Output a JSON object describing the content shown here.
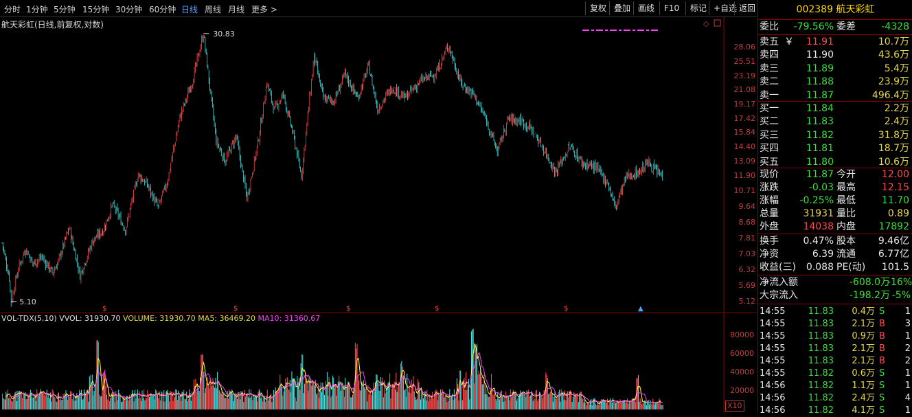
{
  "toolbar": {
    "tabs": [
      "分时",
      "1分钟",
      "5分钟",
      "15分钟",
      "30分钟",
      "60分钟",
      "日线",
      "周线",
      "月线",
      "更多 >"
    ],
    "active_tab": "日线",
    "buttons": [
      "复权",
      "叠加",
      "画线",
      "F10",
      "标记",
      "+自选",
      "返回"
    ]
  },
  "chart": {
    "title": "航天彩虹(日线,前复权,对数)",
    "high_marker": "30.83",
    "low_marker": "5.10",
    "price_axis": [
      "28.06",
      "25.51",
      "23.19",
      "21.08",
      "19.17",
      "17.42",
      "15.84",
      "14.40",
      "13.09",
      "11.90",
      "10.71",
      "9.64",
      "8.68",
      "7.81",
      "7.03",
      "6.32",
      "5.69",
      "5.12"
    ],
    "vol_header": {
      "name": "VOL-TDX(5,10)",
      "vvol": "VVOL: 31930.70",
      "volume": "VOLUME: 31930.70",
      "ma5": "MA5: 36469.20",
      "ma10": "MA10: 31360.67"
    },
    "vol_axis": [
      "80000",
      "60000",
      "40000",
      "20000"
    ],
    "vol_unit": "X10",
    "colors": {
      "up": "#ff4a4a",
      "down": "#40e0e0",
      "ma5": "#ffff40",
      "ma10": "#ff40ff",
      "axis": "#c04040"
    }
  },
  "quote": {
    "code": "002389",
    "name": "航天彩虹",
    "weibi_label": "委比",
    "weibi": "-79.56%",
    "weicha_label": "委差",
    "weicha": "-4328",
    "asks": [
      {
        "label": "卖五",
        "mark": "￥",
        "price": "11.91",
        "vol": "10.7万",
        "pc": "c-red"
      },
      {
        "label": "卖四",
        "mark": "",
        "price": "11.90",
        "vol": "43.6万",
        "pc": "c-white"
      },
      {
        "label": "卖三",
        "mark": "",
        "price": "11.89",
        "vol": "5.4万",
        "pc": "c-green"
      },
      {
        "label": "卖二",
        "mark": "",
        "price": "11.88",
        "vol": "23.9万",
        "pc": "c-green"
      },
      {
        "label": "卖一",
        "mark": "",
        "price": "11.87",
        "vol": "496.4万",
        "pc": "c-green"
      }
    ],
    "bids": [
      {
        "label": "买一",
        "price": "11.84",
        "vol": "2.2万"
      },
      {
        "label": "买二",
        "price": "11.83",
        "vol": "2.4万"
      },
      {
        "label": "买三",
        "price": "11.82",
        "vol": "31.8万"
      },
      {
        "label": "买四",
        "price": "11.81",
        "vol": "18.7万"
      },
      {
        "label": "买五",
        "price": "11.80",
        "vol": "10.6万"
      }
    ],
    "stats": [
      {
        "l1": "现价",
        "v1": "11.87",
        "c1": "c-green",
        "l2": "今开",
        "v2": "12.00",
        "c2": "c-red"
      },
      {
        "l1": "涨跌",
        "v1": "-0.03",
        "c1": "c-green",
        "l2": "最高",
        "v2": "12.15",
        "c2": "c-red"
      },
      {
        "l1": "涨幅",
        "v1": "-0.25%",
        "c1": "c-green",
        "l2": "最低",
        "v2": "11.70",
        "c2": "c-green"
      },
      {
        "l1": "总量",
        "v1": "31931",
        "c1": "c-yellow",
        "l2": "量比",
        "v2": "0.89",
        "c2": "c-yellow"
      },
      {
        "l1": "外盘",
        "v1": "14038",
        "c1": "c-red",
        "l2": "内盘",
        "v2": "17892",
        "c2": "c-green"
      }
    ],
    "fund": [
      {
        "l1": "换手",
        "v1": "0.47%",
        "l2": "股本",
        "v2": "9.46亿"
      },
      {
        "l1": "净资",
        "v1": "6.39",
        "l2": "流通",
        "v2": "6.77亿"
      },
      {
        "l1": "收益(三)",
        "v1": "0.088",
        "l2": "PE(动)",
        "v2": "101.5"
      }
    ],
    "flow": [
      {
        "label": "净流入额",
        "v": "-608.0万",
        "p": "-16%"
      },
      {
        "label": "大宗流入",
        "v": "-198.2万",
        "p": "-5%"
      }
    ],
    "ticks": [
      {
        "t": "14:55",
        "p": "11.83",
        "v": "0.4万",
        "d": "S",
        "n": "1"
      },
      {
        "t": "14:55",
        "p": "11.83",
        "v": "2.1万",
        "d": "B",
        "n": "3"
      },
      {
        "t": "14:55",
        "p": "11.83",
        "v": "0.9万",
        "d": "B",
        "n": "1"
      },
      {
        "t": "14:55",
        "p": "11.83",
        "v": "2.1万",
        "d": "B",
        "n": "2"
      },
      {
        "t": "14:55",
        "p": "11.83",
        "v": "2.1万",
        "d": "B",
        "n": "2"
      },
      {
        "t": "14:55",
        "p": "11.82",
        "v": "0.6万",
        "d": "S",
        "n": "1"
      },
      {
        "t": "14:56",
        "p": "11.82",
        "v": "1.1万",
        "d": "S",
        "n": "1"
      },
      {
        "t": "14:56",
        "p": "11.82",
        "v": "2.4万",
        "d": "S",
        "n": "4"
      },
      {
        "t": "14:56",
        "p": "11.82",
        "v": "4.1万",
        "d": "S",
        "n": "1"
      }
    ]
  }
}
